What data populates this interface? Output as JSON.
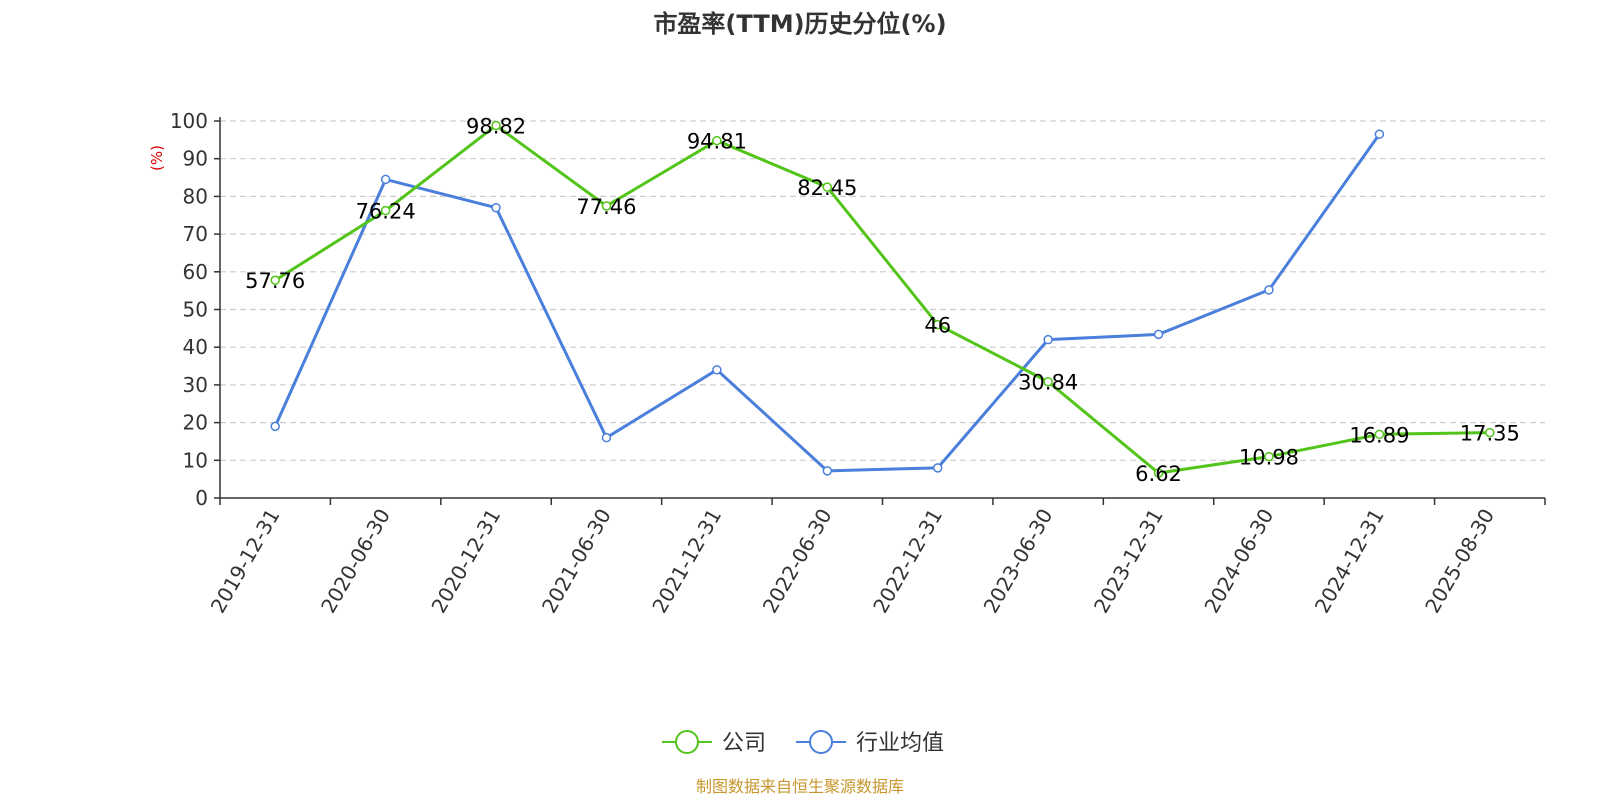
{
  "chart_data": {
    "type": "line",
    "title": "市盈率(TTM)历史分位(%)",
    "ylabel": "(%)",
    "xlabel": "",
    "ylim": [
      0,
      100
    ],
    "yticks": [
      0,
      10,
      20,
      30,
      40,
      50,
      60,
      70,
      80,
      90,
      100
    ],
    "grid": true,
    "legend_position": "bottom-center",
    "categories": [
      "2019-12-31",
      "2020-06-30",
      "2020-12-31",
      "2021-06-30",
      "2021-12-31",
      "2022-06-30",
      "2022-12-31",
      "2023-06-30",
      "2023-12-31",
      "2024-06-30",
      "2024-12-31",
      "2025-08-30"
    ],
    "series": [
      {
        "name": "公司",
        "color": "#52c41a",
        "show_labels": true,
        "values": [
          57.76,
          76.24,
          98.82,
          77.46,
          94.81,
          82.45,
          46,
          30.84,
          6.62,
          10.98,
          16.89,
          17.35
        ]
      },
      {
        "name": "行业均值",
        "color": "#4a7fdb",
        "show_labels": false,
        "values": [
          19,
          84.5,
          77,
          16,
          34,
          7.2,
          8,
          42,
          43.4,
          55.2,
          96.5,
          null
        ]
      }
    ],
    "source": "制图数据来自恒生聚源数据库"
  }
}
